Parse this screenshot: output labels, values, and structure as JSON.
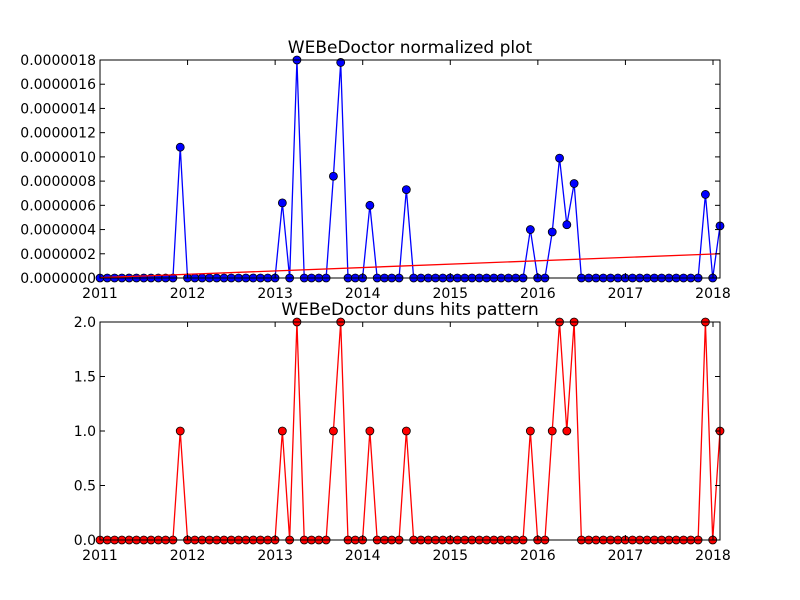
{
  "chart_data": [
    {
      "type": "line",
      "title": "WEBeDoctor normalized plot",
      "xlabel": "",
      "ylabel": "",
      "xlim": [
        2011.0,
        2018.08
      ],
      "ylim": [
        0,
        1.8e-06
      ],
      "x_ticks": [
        2011,
        2012,
        2013,
        2014,
        2015,
        2016,
        2017,
        2018
      ],
      "x_tick_labels": [
        "2011",
        "2012",
        "2013",
        "2014",
        "2015",
        "2016",
        "2017",
        "2018"
      ],
      "y_ticks": [
        0,
        2e-07,
        4e-07,
        6e-07,
        8e-07,
        1e-06,
        1.2e-06,
        1.4e-06,
        1.6e-06,
        1.8e-06
      ],
      "y_tick_labels": [
        "0.0000000",
        "0.0000002",
        "0.0000004",
        "0.0000006",
        "0.0000008",
        "0.0000010",
        "0.0000012",
        "0.0000014",
        "0.0000016",
        "0.0000018"
      ],
      "grid": false,
      "series": [
        {
          "color": "#0000ff",
          "marker": "circle",
          "values": [
            0,
            0,
            0,
            0,
            0,
            0,
            0,
            0,
            0,
            0,
            0,
            1.08e-06,
            0,
            0,
            0,
            0,
            0,
            0,
            0,
            0,
            0,
            0,
            0,
            0,
            0,
            6.2e-07,
            0,
            1.8e-06,
            0,
            0,
            0,
            0,
            8.4e-07,
            1.78e-06,
            0,
            0,
            0,
            6e-07,
            0,
            0,
            0,
            0,
            7.3e-07,
            0,
            0,
            0,
            0,
            0,
            0,
            0,
            0,
            0,
            0,
            0,
            0,
            0,
            0,
            0,
            0,
            4e-07,
            0,
            0,
            3.8e-07,
            9.9e-07,
            4.4e-07,
            7.8e-07,
            0,
            0,
            0,
            0,
            0,
            0,
            0,
            0,
            0,
            0,
            0,
            0,
            0,
            0,
            0,
            0,
            0,
            6.9e-07,
            0,
            4.3e-07
          ]
        },
        {
          "color": "#ff0000",
          "marker": "none",
          "trend": true,
          "x": [
            2011.0,
            2018.08
          ],
          "values": [
            3e-09,
            2e-07
          ]
        }
      ]
    },
    {
      "type": "line",
      "title": "WEBeDoctor duns hits pattern",
      "xlabel": "",
      "ylabel": "",
      "xlim": [
        2011.0,
        2018.08
      ],
      "ylim": [
        0,
        2.0
      ],
      "x_ticks": [
        2011,
        2012,
        2013,
        2014,
        2015,
        2016,
        2017,
        2018
      ],
      "x_tick_labels": [
        "2011",
        "2012",
        "2013",
        "2014",
        "2015",
        "2016",
        "2017",
        "2018"
      ],
      "y_ticks": [
        0,
        0.5,
        1.0,
        1.5,
        2.0
      ],
      "y_tick_labels": [
        "0.0",
        "0.5",
        "1.0",
        "1.5",
        "2.0"
      ],
      "grid": false,
      "series": [
        {
          "color": "#ff0000",
          "marker": "circle",
          "values": [
            0,
            0,
            0,
            0,
            0,
            0,
            0,
            0,
            0,
            0,
            0,
            1,
            0,
            0,
            0,
            0,
            0,
            0,
            0,
            0,
            0,
            0,
            0,
            0,
            0,
            1,
            0,
            2,
            0,
            0,
            0,
            0,
            1,
            2,
            0,
            0,
            0,
            1,
            0,
            0,
            0,
            0,
            1,
            0,
            0,
            0,
            0,
            0,
            0,
            0,
            0,
            0,
            0,
            0,
            0,
            0,
            0,
            0,
            0,
            1,
            0,
            0,
            1,
            2,
            1,
            2,
            0,
            0,
            0,
            0,
            0,
            0,
            0,
            0,
            0,
            0,
            0,
            0,
            0,
            0,
            0,
            0,
            0,
            2,
            0,
            1
          ]
        }
      ]
    }
  ]
}
